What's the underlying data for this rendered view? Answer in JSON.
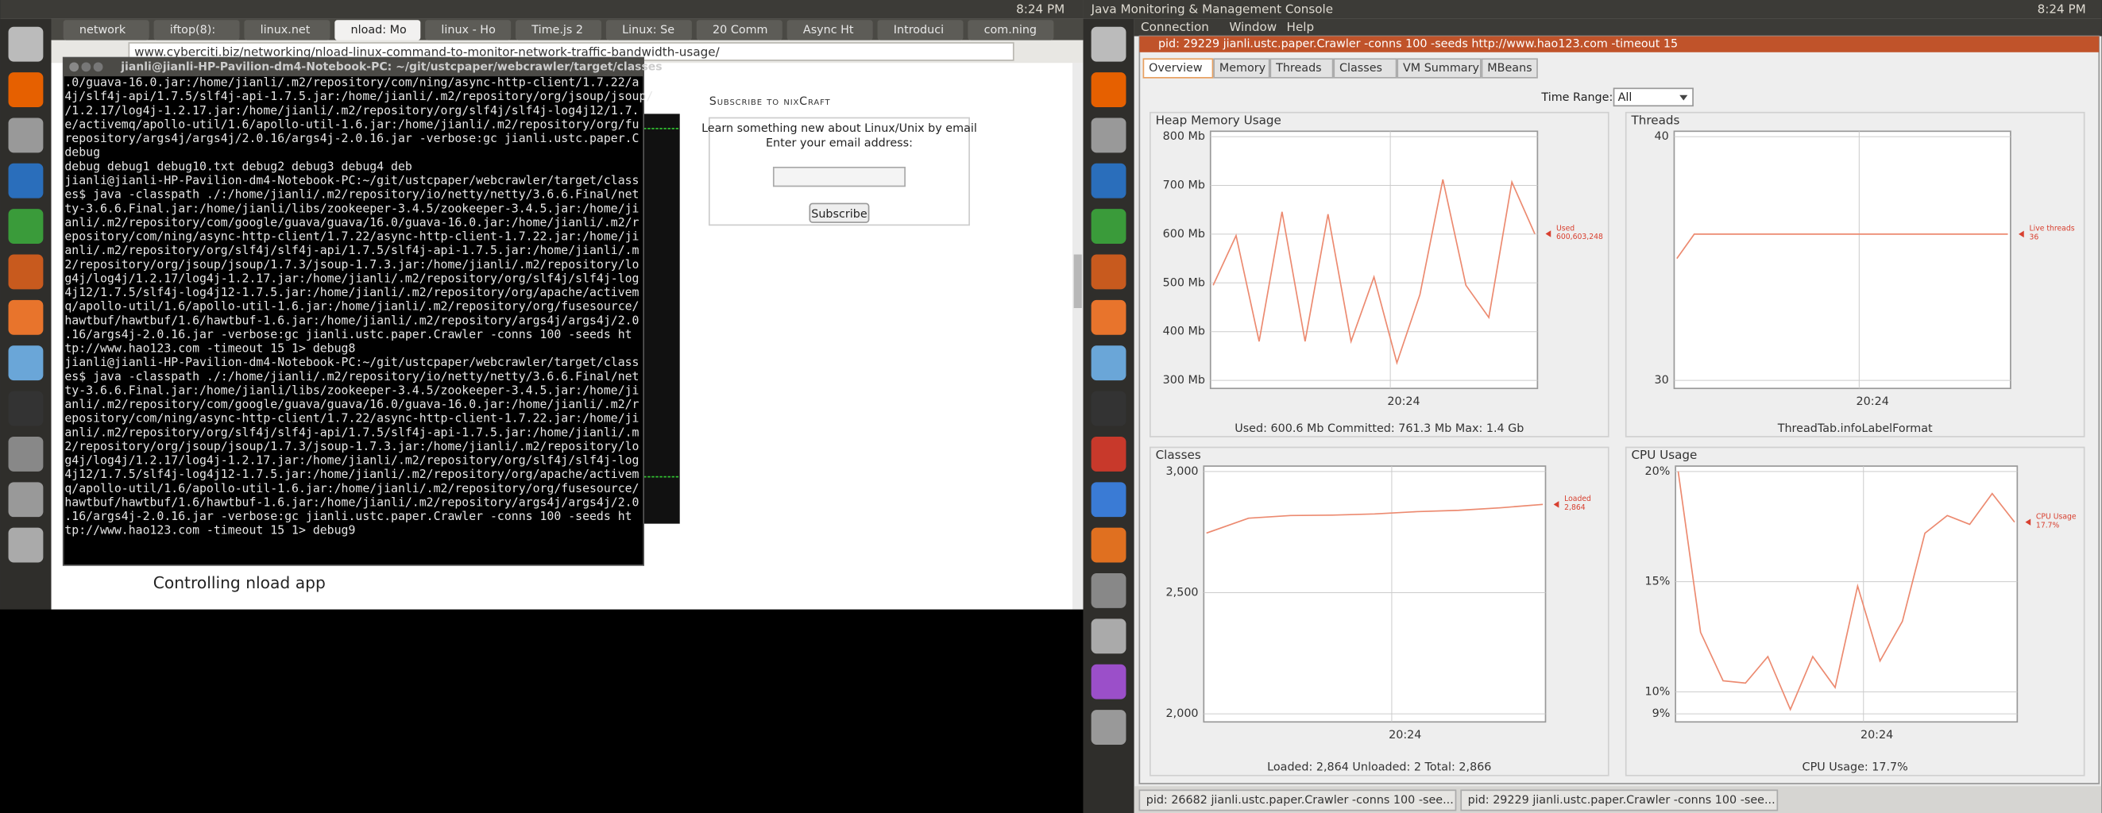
{
  "left_screen": {
    "panel_time": "8:24 PM",
    "tabs": [
      "network",
      "iftop(8):",
      "linux.net",
      "nload: Mo",
      "linux - Ho",
      "Time.js 2",
      "Linux: Se",
      "20 Comm",
      "Async Ht",
      "Introduci",
      "com.ning"
    ],
    "url": "www.cyberciti.biz/networking/nload-linux-command-to-monitor-network-traffic-bandwidth-usage/",
    "terminal": {
      "title": "jianli@jianli-HP-Pavilion-dm4-Notebook-PC: ~/git/ustcpaper/webcrawler/target/classes",
      "lines": [
        ".0/guava-16.0.jar:/home/jianli/.m2/repository/com/ning/async-http-client/1.7.22/a",
        "4j/slf4j-api/1.7.5/slf4j-api-1.7.5.jar:/home/jianli/.m2/repository/org/jsoup/jsoup/",
        "/1.2.17/log4j-1.2.17.jar:/home/jianli/.m2/repository/org/slf4j/slf4j-log4j12/1.7.",
        "e/activemq/apollo-util/1.6/apollo-util-1.6.jar:/home/jianli/.m2/repository/org/fu",
        "repository/args4j/args4j/2.0.16/args4j-2.0.16.jar -verbose:gc  jianli.ustc.paper.C",
        "debug",
        "debug       debug1      debug10.txt  debug2      debug3      debug4      deb",
        "jianli@jianli-HP-Pavilion-dm4-Notebook-PC:~/git/ustcpaper/webcrawler/target/class",
        "es$ java -classpath ./:/home/jianli/.m2/repository/io/netty/netty/3.6.6.Final/net",
        "ty-3.6.6.Final.jar:/home/jianli/libs/zookeeper-3.4.5/zookeeper-3.4.5.jar:/home/ji",
        "anli/.m2/repository/com/google/guava/guava/16.0/guava-16.0.jar:/home/jianli/.m2/r",
        "epository/com/ning/async-http-client/1.7.22/async-http-client-1.7.22.jar:/home/ji",
        "anli/.m2/repository/org/slf4j/slf4j-api/1.7.5/slf4j-api-1.7.5.jar:/home/jianli/.m",
        "2/repository/org/jsoup/jsoup/1.7.3/jsoup-1.7.3.jar:/home/jianli/.m2/repository/lo",
        "g4j/log4j/1.2.17/log4j-1.2.17.jar:/home/jianli/.m2/repository/org/slf4j/slf4j-log",
        "4j12/1.7.5/slf4j-log4j12-1.7.5.jar:/home/jianli/.m2/repository/org/apache/activem",
        "q/apollo-util/1.6/apollo-util-1.6.jar:/home/jianli/.m2/repository/org/fusesource/",
        "hawtbuf/hawtbuf/1.6/hawtbuf-1.6.jar:/home/jianli/.m2/repository/args4j/args4j/2.0",
        ".16/args4j-2.0.16.jar -verbose:gc  jianli.ustc.paper.Crawler -conns 100 -seeds ht",
        "tp://www.hao123.com -timeout 15 1> debug8",
        "jianli@jianli-HP-Pavilion-dm4-Notebook-PC:~/git/ustcpaper/webcrawler/target/class",
        "es$ java -classpath ./:/home/jianli/.m2/repository/io/netty/netty/3.6.6.Final/net",
        "ty-3.6.6.Final.jar:/home/jianli/libs/zookeeper-3.4.5/zookeeper-3.4.5.jar:/home/ji",
        "anli/.m2/repository/com/google/guava/guava/16.0/guava-16.0.jar:/home/jianli/.m2/r",
        "epository/com/ning/async-http-client/1.7.22/async-http-client-1.7.22.jar:/home/ji",
        "anli/.m2/repository/org/slf4j/slf4j-api/1.7.5/slf4j-api-1.7.5.jar:/home/jianli/.m",
        "2/repository/org/jsoup/jsoup/1.7.3/jsoup-1.7.3.jar:/home/jianli/.m2/repository/lo",
        "g4j/log4j/1.2.17/log4j-1.2.17.jar:/home/jianli/.m2/repository/org/slf4j/slf4j-log",
        "4j12/1.7.5/slf4j-log4j12-1.7.5.jar:/home/jianli/.m2/repository/org/apache/activem",
        "q/apollo-util/1.6/apollo-util-1.6.jar:/home/jianli/.m2/repository/org/fusesource/",
        "hawtbuf/hawtbuf/1.6/hawtbuf-1.6.jar:/home/jianli/.m2/repository/args4j/args4j/2.0",
        ".16/args4j-2.0.16.jar -verbose:gc  jianli.ustc.paper.Crawler -conns 100 -seeds ht",
        "tp://www.hao123.com -timeout 15 1> debug9"
      ]
    },
    "sidebar": {
      "heading": "Subscribe to nixCraft",
      "text1": "Learn something new about Linux/Unix by email",
      "text2": "Enter your email address:",
      "button": "Subscribe"
    },
    "article_heading": "Controlling nload app"
  },
  "right_screen": {
    "app_title": "Java Monitoring & Management Console",
    "panel_time": "8:24 PM",
    "menu": [
      "Connection",
      "Window",
      "Help"
    ],
    "window_title": "pid: 29229 jianli.ustc.paper.Crawler -conns 100 -seeds http://www.hao123.com -timeout 15",
    "tabs": [
      "Overview",
      "Memory",
      "Threads",
      "Classes",
      "VM Summary",
      "MBeans"
    ],
    "time_range": {
      "label": "Time Range:",
      "value": "All"
    },
    "charts": [
      {
        "type": "line",
        "title": "Heap Memory Usage",
        "ylim": [
          300,
          800
        ],
        "yticks": [
          {
            "value": 300,
            "label": "300 Mb"
          },
          {
            "value": 400,
            "label": "400 Mb"
          },
          {
            "value": 500,
            "label": "500 Mb"
          },
          {
            "value": 600,
            "label": "600 Mb"
          },
          {
            "value": 700,
            "label": "700 Mb"
          },
          {
            "value": 800,
            "label": "800 Mb"
          }
        ],
        "x_labels": [
          "20:24"
        ],
        "series": [
          {
            "name": "Used",
            "color": "#ec8a70",
            "values": [
              495,
              597,
              380,
              646,
              380,
              641,
              380,
              512,
              336,
              476,
              712,
              495,
              429,
              707,
              600.6
            ],
            "last_label": "600,603,248"
          }
        ],
        "footer": "Used: 600.6 Mb   Committed: 761.3 Mb   Max: 1.4 Gb"
      },
      {
        "type": "line",
        "title": "Threads",
        "ylim": [
          30,
          40
        ],
        "yticks": [
          30,
          40
        ],
        "x_labels": [
          "20:24"
        ],
        "series": [
          {
            "name": "Live threads",
            "color": "#ec8a70",
            "values": [
              35,
              36,
              36,
              36,
              36,
              36,
              36,
              36,
              36,
              36,
              36,
              36,
              36,
              36,
              36,
              36,
              36,
              36,
              36,
              36
            ],
            "last_label": "36"
          }
        ],
        "footer": "ThreadTab.infoLabelFormat"
      },
      {
        "type": "line",
        "title": "Classes",
        "ylim": [
          2000,
          3000
        ],
        "yticks": [
          {
            "value": 2000,
            "label": "2,000"
          },
          {
            "value": 2500,
            "label": "2,500"
          },
          {
            "value": 3000,
            "label": "3,000"
          }
        ],
        "x_labels": [
          "20:24"
        ],
        "series": [
          {
            "name": "Loaded",
            "color": "#ec8a70",
            "values": [
              2746,
              2807,
              2818,
              2820,
              2825,
              2834,
              2840,
              2850,
              2864
            ],
            "last_label": "2,864"
          }
        ],
        "footer": "Loaded: 2,864   Unloaded: 2   Total: 2,866"
      },
      {
        "type": "line",
        "title": "CPU Usage",
        "ylim": [
          9,
          20
        ],
        "yticks": [
          {
            "value": 9,
            "label": "9%"
          },
          {
            "value": 10,
            "label": "10%"
          },
          {
            "value": 15,
            "label": "15%"
          },
          {
            "value": 20,
            "label": "20%"
          }
        ],
        "x_labels": [
          "20:24"
        ],
        "series": [
          {
            "name": "CPU Usage",
            "color": "#ec8a70",
            "values": [
              20,
              12.7,
              10.5,
              10.4,
              11.6,
              9.2,
              11.6,
              10.2,
              14.8,
              11.4,
              13.2,
              17.2,
              18,
              17.6,
              19,
              17.7
            ],
            "last_label": "17.7%"
          }
        ],
        "footer": "CPU Usage: 17.7%"
      }
    ],
    "taskbar": [
      "pid: 26682 jianli.ustc.paper.Crawler -conns 100 -see...",
      "pid: 29229 jianli.ustc.paper.Crawler -conns 100 -see..."
    ]
  }
}
